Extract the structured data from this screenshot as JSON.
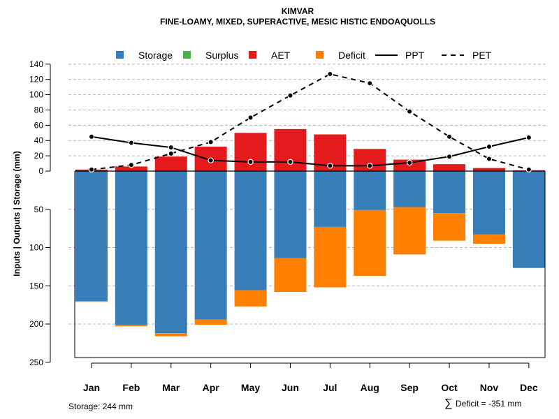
{
  "chart_data": {
    "type": "bar",
    "title": "KIMVAR",
    "subtitle": "FINE-LOAMY, MIXED, SUPERACTIVE, MESIC HISTIC ENDOAQUOLLS",
    "ylabel": "Inputs | Outputs | Storage    (mm)",
    "categories": [
      "Jan",
      "Feb",
      "Mar",
      "Apr",
      "May",
      "Jun",
      "Jul",
      "Aug",
      "Sep",
      "Oct",
      "Nov",
      "Dec"
    ],
    "upper_axis": {
      "ticks": [
        0,
        20,
        40,
        60,
        80,
        100,
        120,
        140
      ],
      "ylim": [
        0,
        140
      ]
    },
    "lower_axis": {
      "ticks": [
        50,
        100,
        150,
        200,
        250
      ],
      "ylim": [
        0,
        250
      ]
    },
    "series": [
      {
        "name": "Storage",
        "color": "#377EB8",
        "values": [
          170,
          201,
          212,
          194,
          156,
          114,
          73,
          51,
          47,
          55,
          83,
          126
        ]
      },
      {
        "name": "Surplus",
        "color": "#4DAF4A",
        "values": [
          0,
          0,
          0,
          0,
          0,
          0,
          0,
          0,
          0,
          0,
          0,
          0
        ]
      },
      {
        "name": "AET",
        "color": "#E41A1C",
        "values": [
          2,
          6,
          19,
          32,
          50,
          55,
          48,
          29,
          15,
          9,
          4,
          1
        ]
      },
      {
        "name": "Deficit",
        "color": "#FF7F00",
        "values": [
          1,
          2,
          4,
          7,
          21,
          44,
          79,
          86,
          62,
          36,
          12,
          1
        ]
      },
      {
        "name": "PPT",
        "color": "#000000",
        "style": "solid",
        "values": [
          45,
          37,
          31,
          14,
          12,
          12,
          7,
          7,
          11,
          19,
          32,
          44
        ]
      },
      {
        "name": "PET",
        "color": "#000000",
        "style": "dashed",
        "values": [
          2,
          8,
          23,
          38,
          70,
          99,
          127,
          115,
          78,
          45,
          16,
          2
        ]
      }
    ],
    "legend_position": "top",
    "grid": true
  },
  "footer": {
    "storage_label": "Storage: 244 mm",
    "deficit_symbol": "∑",
    "deficit_label": "Deficit = -351 mm"
  }
}
